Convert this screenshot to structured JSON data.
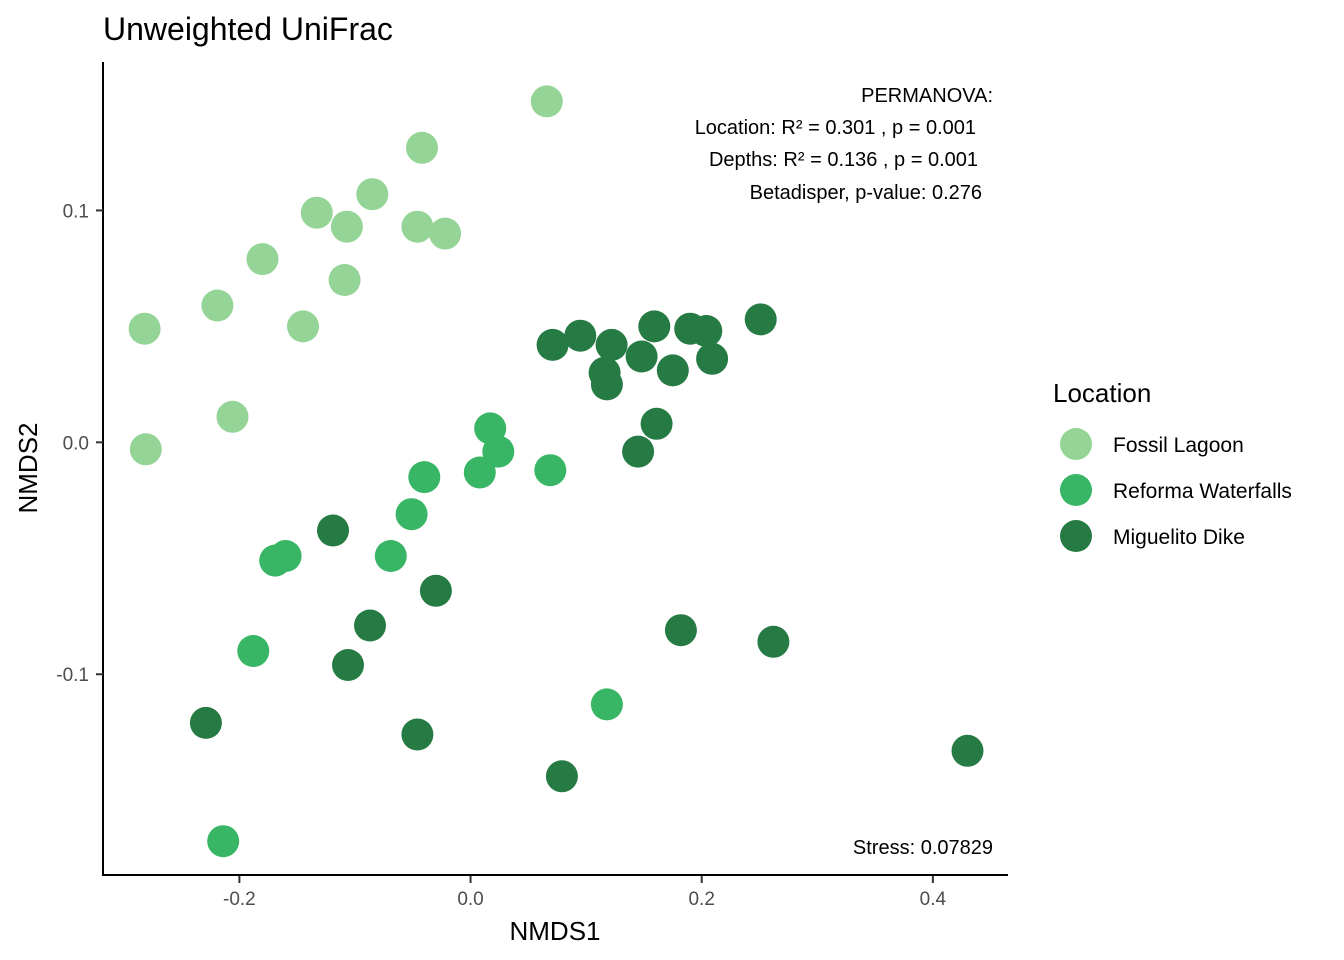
{
  "chart_data": {
    "type": "scatter",
    "title": "Unweighted UniFrac",
    "xlabel": "NMDS1",
    "ylabel": "NMDS2",
    "xlim": [
      -0.318,
      0.465
    ],
    "ylim": [
      -0.187,
      0.164
    ],
    "x_ticks": [
      {
        "value": -0.2,
        "label": "-0.2"
      },
      {
        "value": 0.0,
        "label": "0.0"
      },
      {
        "value": 0.2,
        "label": "0.2"
      },
      {
        "value": 0.4,
        "label": "0.4"
      }
    ],
    "y_ticks": [
      {
        "value": -0.1,
        "label": "-0.1"
      },
      {
        "value": 0.0,
        "label": "0.0"
      },
      {
        "value": 0.1,
        "label": "0.1"
      }
    ],
    "grid": false,
    "legend": {
      "title": "Location",
      "placement": "right"
    },
    "annotations": {
      "permanova_header": "PERMANOVA:",
      "permanova_location": "Location: R² = 0.301 , p = 0.001",
      "permanova_depths": "Depths: R² = 0.136 , p = 0.001",
      "betadisper": "Betadisper, p-value: 0.276",
      "stress": "Stress: 0.07829"
    },
    "series": [
      {
        "name": "Fossil Lagoon",
        "color": "#95d497",
        "points": [
          [
            0.066,
            0.147
          ],
          [
            -0.042,
            0.127
          ],
          [
            -0.085,
            0.107
          ],
          [
            -0.133,
            0.099
          ],
          [
            -0.107,
            0.093
          ],
          [
            -0.046,
            0.093
          ],
          [
            -0.022,
            0.09
          ],
          [
            -0.18,
            0.079
          ],
          [
            -0.109,
            0.07
          ],
          [
            -0.219,
            0.059
          ],
          [
            -0.145,
            0.05
          ],
          [
            -0.282,
            0.049
          ],
          [
            -0.206,
            0.011
          ],
          [
            -0.281,
            -0.003
          ]
        ]
      },
      {
        "name": "Reforma Waterfalls",
        "color": "#38b665",
        "points": [
          [
            0.017,
            0.006
          ],
          [
            0.024,
            -0.004
          ],
          [
            -0.04,
            -0.015
          ],
          [
            0.008,
            -0.013
          ],
          [
            0.069,
            -0.012
          ],
          [
            -0.051,
            -0.031
          ],
          [
            -0.069,
            -0.049
          ],
          [
            -0.16,
            -0.049
          ],
          [
            -0.169,
            -0.051
          ],
          [
            -0.188,
            -0.09
          ],
          [
            0.118,
            -0.113
          ],
          [
            -0.214,
            -0.172
          ]
        ]
      },
      {
        "name": "Miguelito Dike",
        "color": "#267a44",
        "points": [
          [
            0.251,
            0.053
          ],
          [
            0.159,
            0.05
          ],
          [
            0.19,
            0.049
          ],
          [
            0.204,
            0.048
          ],
          [
            0.095,
            0.046
          ],
          [
            0.071,
            0.042
          ],
          [
            0.122,
            0.042
          ],
          [
            0.148,
            0.037
          ],
          [
            0.209,
            0.036
          ],
          [
            0.175,
            0.031
          ],
          [
            0.116,
            0.03
          ],
          [
            0.118,
            0.025
          ],
          [
            0.161,
            0.008
          ],
          [
            0.145,
            -0.004
          ],
          [
            -0.119,
            -0.038
          ],
          [
            -0.03,
            -0.064
          ],
          [
            -0.087,
            -0.079
          ],
          [
            0.182,
            -0.081
          ],
          [
            0.262,
            -0.086
          ],
          [
            -0.106,
            -0.096
          ],
          [
            -0.229,
            -0.121
          ],
          [
            -0.046,
            -0.126
          ],
          [
            0.079,
            -0.144
          ],
          [
            0.43,
            -0.133
          ]
        ]
      }
    ]
  }
}
